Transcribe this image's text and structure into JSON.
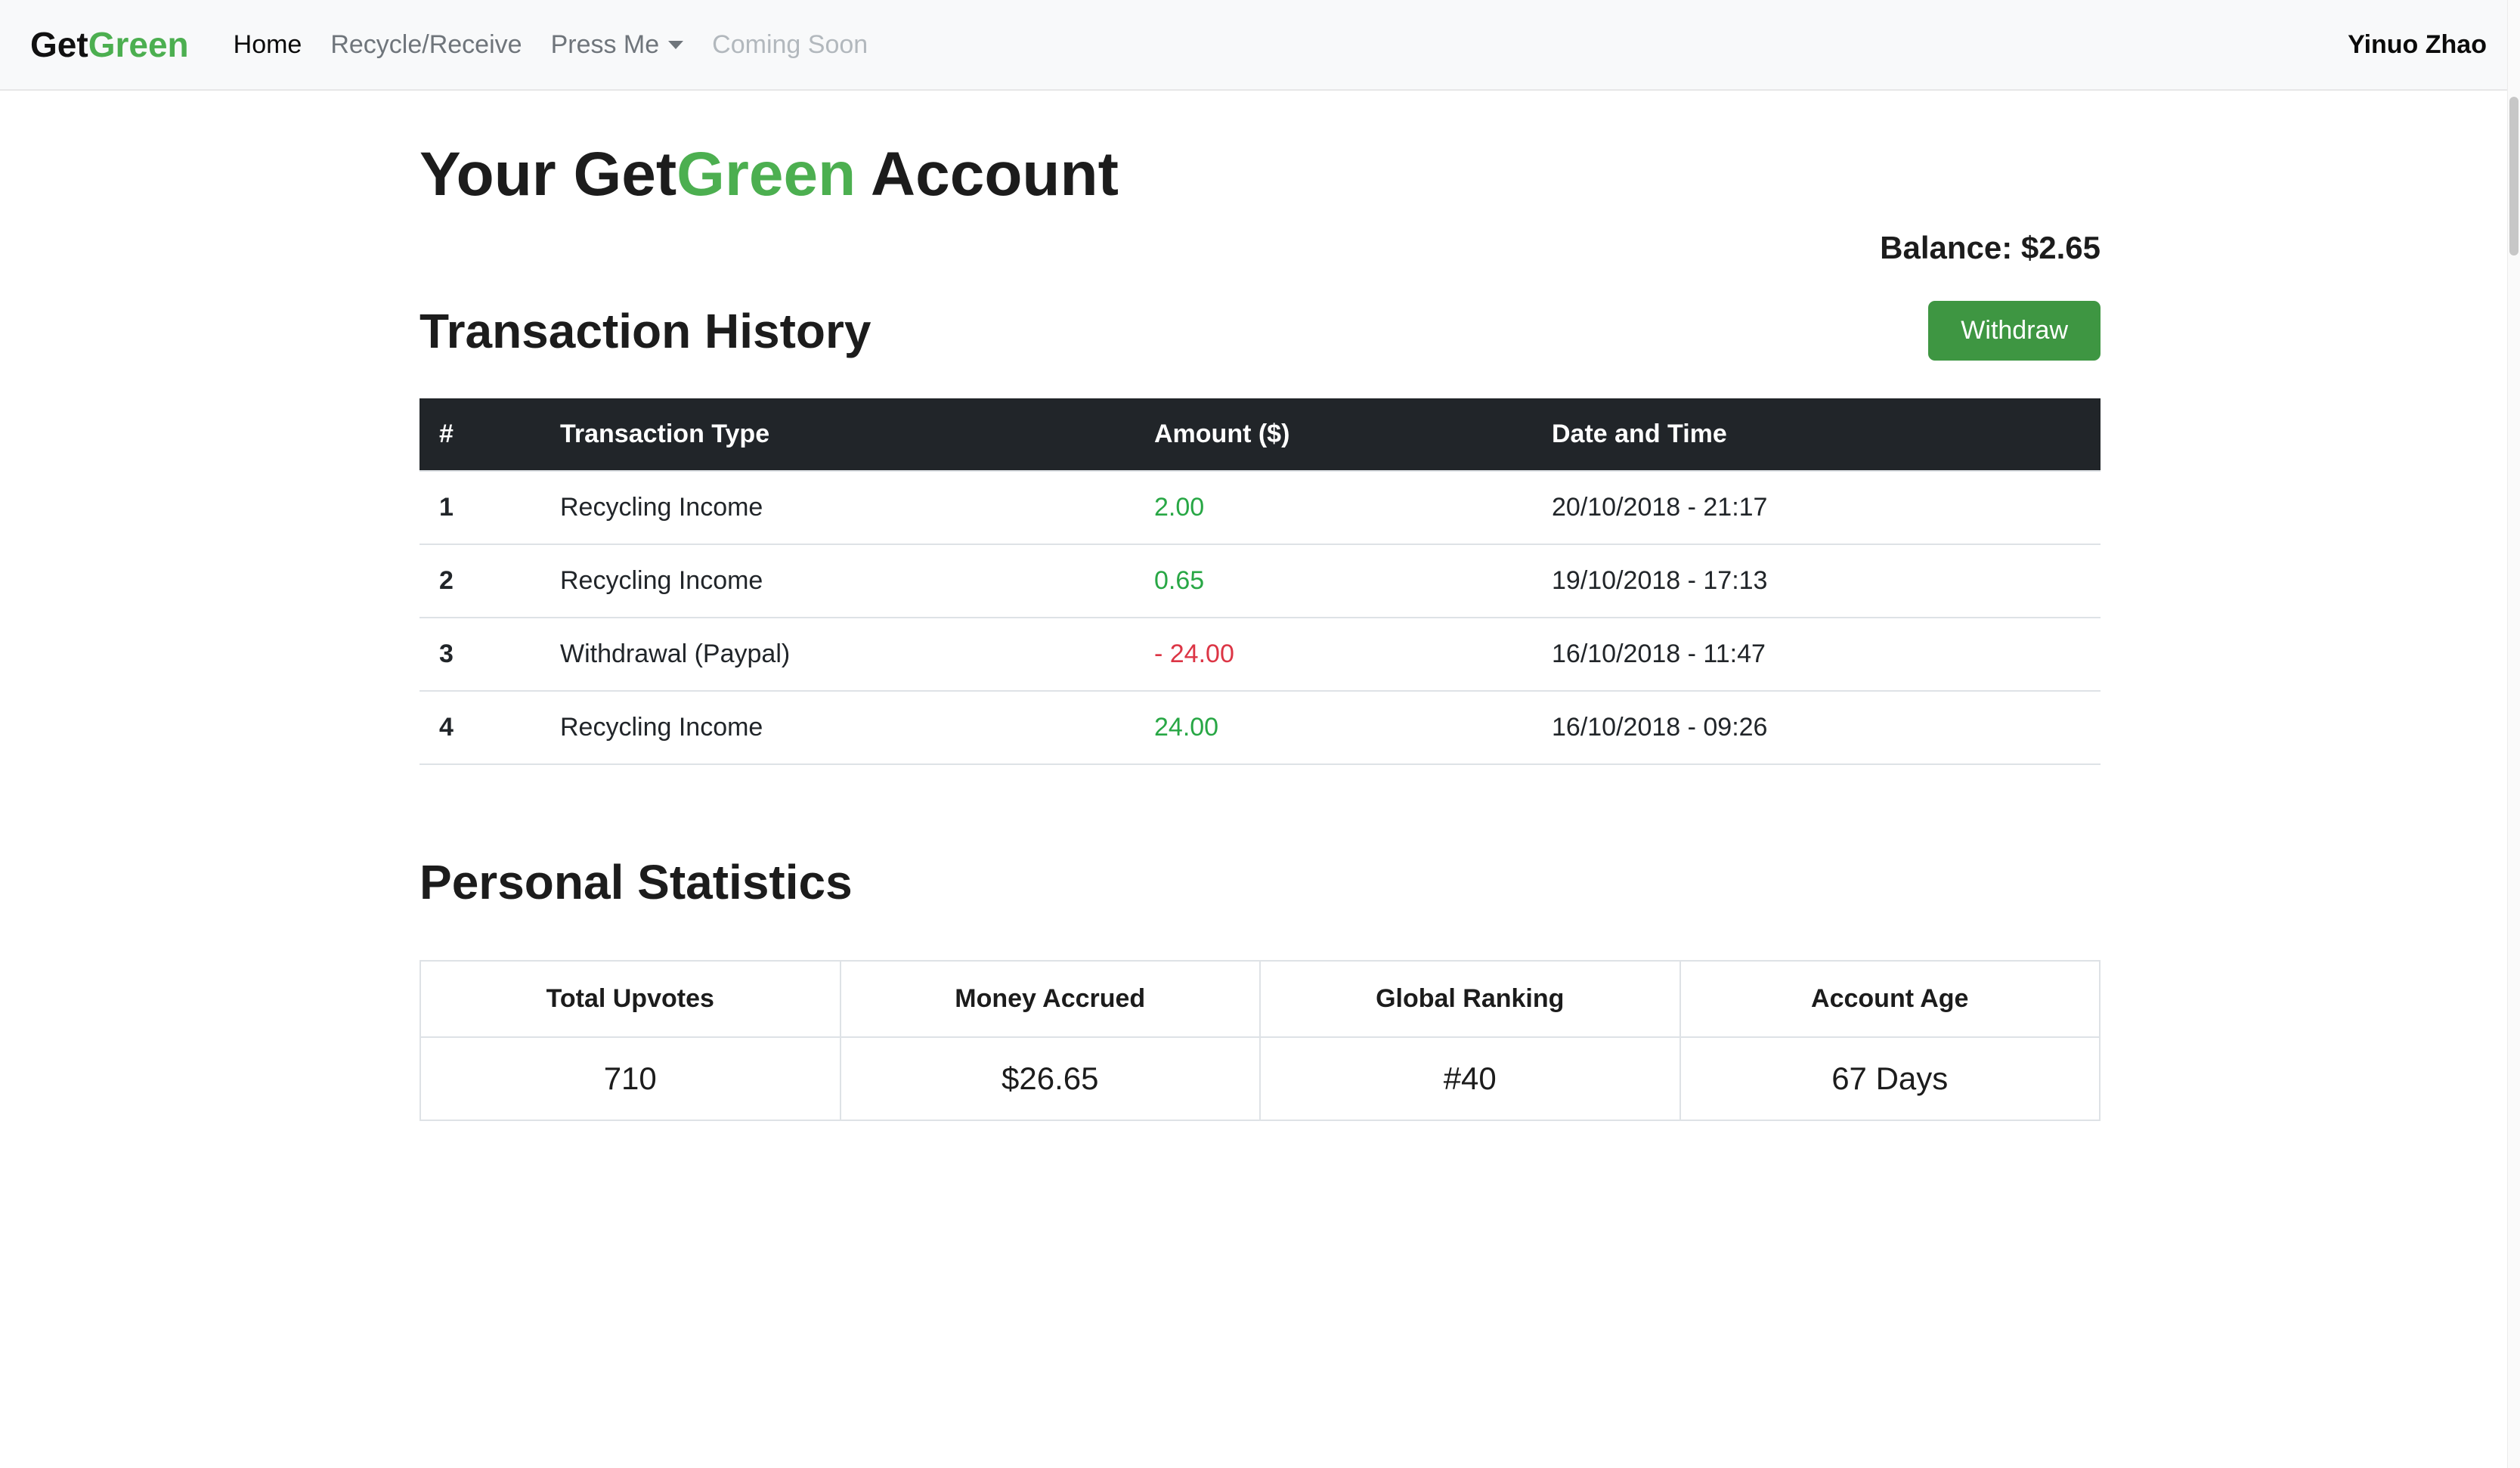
{
  "colors": {
    "brand_green": "#4CAF50",
    "button_green": "#3E9642",
    "positive_amount": "#28a745",
    "negative_amount": "#dc3545",
    "table_header_bg": "#212529",
    "navbar_bg": "#f8f9fa"
  },
  "navbar": {
    "brand_get": "Get",
    "brand_green": "Green",
    "items": [
      {
        "label": "Home"
      },
      {
        "label": "Recycle/Receive"
      },
      {
        "label": "Press Me"
      },
      {
        "label": "Coming Soon"
      }
    ],
    "user": "Yinuo Zhao"
  },
  "account": {
    "title_prefix": "Your Get",
    "title_green": "Green",
    "title_suffix": " Account",
    "balance": "Balance: $2.65"
  },
  "transactions": {
    "heading": "Transaction History",
    "withdraw_label": "Withdraw",
    "columns": [
      "#",
      "Transaction Type",
      "Amount ($)",
      "Date and Time"
    ],
    "rows": [
      {
        "num": "1",
        "type": "Recycling Income",
        "amount": "2.00",
        "sign": "positive",
        "datetime": "20/10/2018 - 21:17"
      },
      {
        "num": "2",
        "type": "Recycling Income",
        "amount": "0.65",
        "sign": "positive",
        "datetime": "19/10/2018 - 17:13"
      },
      {
        "num": "3",
        "type": "Withdrawal (Paypal)",
        "amount": "- 24.00",
        "sign": "negative",
        "datetime": "16/10/2018 - 11:47"
      },
      {
        "num": "4",
        "type": "Recycling Income",
        "amount": "24.00",
        "sign": "positive",
        "datetime": "16/10/2018 - 09:26"
      }
    ]
  },
  "stats": {
    "heading": "Personal Statistics",
    "columns": [
      "Total Upvotes",
      "Money Accrued",
      "Global Ranking",
      "Account Age"
    ],
    "values": [
      "710",
      "$26.65",
      "#40",
      "67 Days"
    ]
  }
}
